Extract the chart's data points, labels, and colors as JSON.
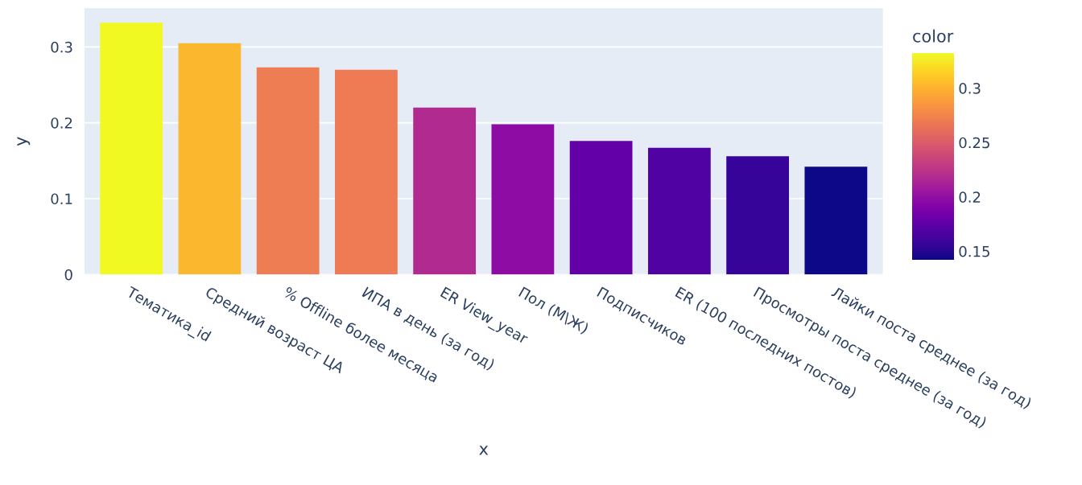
{
  "chart_data": {
    "type": "bar",
    "xlabel": "x",
    "ylabel": "y",
    "clabel": "color",
    "categories": [
      "Тематика_id",
      "Средний возраст ЦА",
      "% Offline более месяца",
      "ИПА в день (за год)",
      "ER View_year",
      "Пол (М\\Ж)",
      "Подписчиков",
      "ER (100 последних постов)",
      "Просмотры поста среднее (за год)",
      "Лайки поста среднее (за год)"
    ],
    "values": [
      0.332,
      0.305,
      0.273,
      0.27,
      0.22,
      0.198,
      0.176,
      0.167,
      0.156,
      0.142
    ],
    "colors": [
      "#f0f921",
      "#fbb82f",
      "#ee7d53",
      "#ee7b53",
      "#b12a90",
      "#8e0ca4",
      "#6300a7",
      "#5002a2",
      "#37049a",
      "#0d0887"
    ],
    "ylim": [
      0,
      0.351
    ],
    "yticks": [
      0,
      0.1,
      0.2,
      0.3
    ],
    "clim": [
      0.142,
      0.332
    ],
    "cticks": [
      0.15,
      0.2,
      0.25,
      0.3
    ],
    "grid": "y",
    "legend": false
  }
}
